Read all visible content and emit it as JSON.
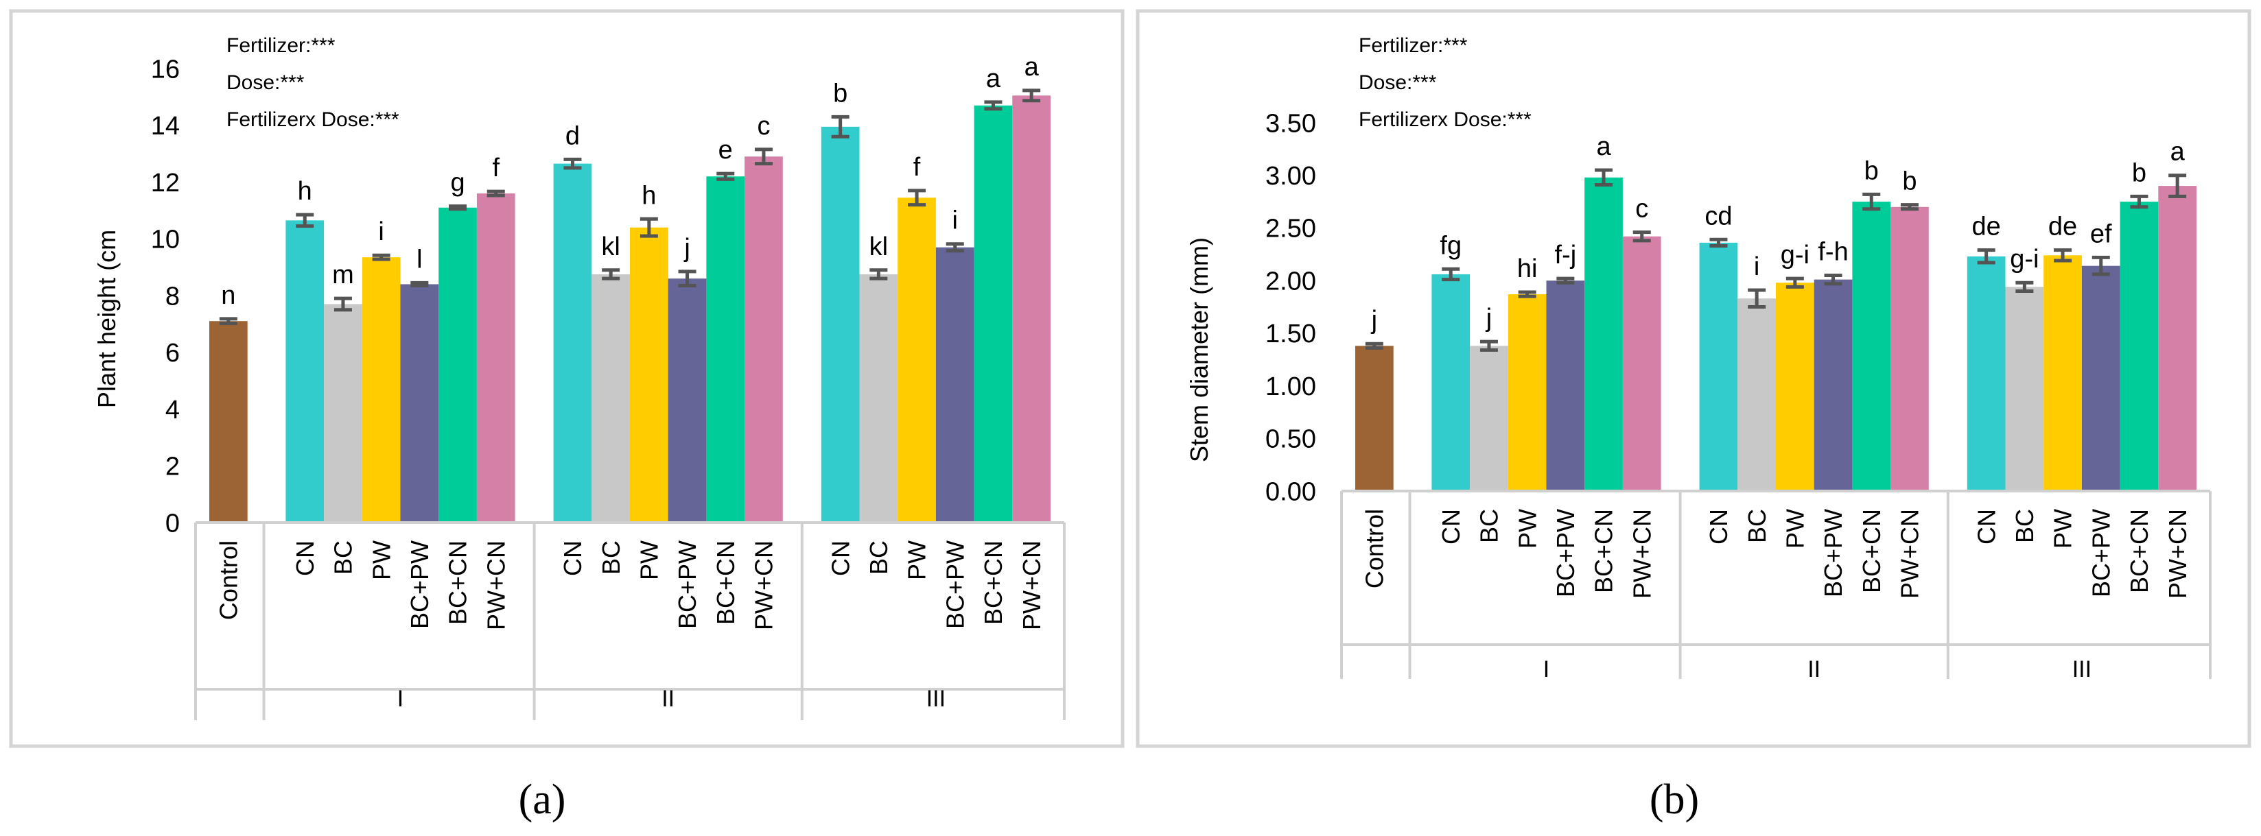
{
  "colors": {
    "Control": "#9c6434",
    "CN": "#33cccc",
    "BC": "#c8c8c8",
    "PW": "#ffcc00",
    "BC+PW": "#656597",
    "BC+CN": "#00cc99",
    "PW+CN": "#d581a7",
    "errorbar": "#545454",
    "frame": "#d4d4d4",
    "axis": "#d0d0d0"
  },
  "chart_data": [
    {
      "type": "bar",
      "panel_label": "(a)",
      "ylabel": "Plant height (cm",
      "ylim": [
        0,
        16
      ],
      "yticks": [
        0,
        2,
        4,
        6,
        8,
        10,
        12,
        14,
        16
      ],
      "ytick_labels": [
        "0",
        "2",
        "4",
        "6",
        "8",
        "10",
        "12",
        "14",
        "16"
      ],
      "annotations": [
        "Fertilizer:***",
        "Dose:***",
        "Fertilizerx Dose:***"
      ],
      "categories": [
        "Control",
        "CN",
        "BC",
        "PW",
        "BC+PW",
        "BC+CN",
        "PW+CN",
        "CN",
        "BC",
        "PW",
        "BC+PW",
        "BC+CN",
        "PW+CN",
        "CN",
        "BC",
        "PW",
        "BC+PW",
        "BC+CN",
        "PW+CN"
      ],
      "groups": [
        {
          "label": "",
          "bars": [
            {
              "name": "Control",
              "value": 7.1,
              "err": 0.08,
              "letter": "n"
            }
          ]
        },
        {
          "label": "I",
          "bars": [
            {
              "name": "CN",
              "value": 10.65,
              "err": 0.2,
              "letter": "h"
            },
            {
              "name": "BC",
              "value": 7.7,
              "err": 0.2,
              "letter": "m"
            },
            {
              "name": "PW",
              "value": 9.35,
              "err": 0.07,
              "letter": "i"
            },
            {
              "name": "BC+PW",
              "value": 8.4,
              "err": 0.05,
              "letter": "l"
            },
            {
              "name": "BC+CN",
              "value": 11.1,
              "err": 0.05,
              "letter": "g"
            },
            {
              "name": "PW+CN",
              "value": 11.6,
              "err": 0.07,
              "letter": "f"
            }
          ]
        },
        {
          "label": "II",
          "bars": [
            {
              "name": "CN",
              "value": 12.65,
              "err": 0.15,
              "letter": "d"
            },
            {
              "name": "BC",
              "value": 8.75,
              "err": 0.15,
              "letter": "kl"
            },
            {
              "name": "PW",
              "value": 10.4,
              "err": 0.3,
              "letter": "h"
            },
            {
              "name": "BC+PW",
              "value": 8.6,
              "err": 0.25,
              "letter": "j"
            },
            {
              "name": "BC+CN",
              "value": 12.2,
              "err": 0.1,
              "letter": "e"
            },
            {
              "name": "PW+CN",
              "value": 12.9,
              "err": 0.25,
              "letter": "c"
            }
          ]
        },
        {
          "label": "III",
          "bars": [
            {
              "name": "CN",
              "value": 13.95,
              "err": 0.35,
              "letter": "b"
            },
            {
              "name": "BC",
              "value": 8.75,
              "err": 0.15,
              "letter": "kl"
            },
            {
              "name": "PW",
              "value": 11.45,
              "err": 0.25,
              "letter": "f"
            },
            {
              "name": "BC+PW",
              "value": 9.7,
              "err": 0.12,
              "letter": "i"
            },
            {
              "name": "BC+CN",
              "value": 14.7,
              "err": 0.12,
              "letter": "a"
            },
            {
              "name": "PW+CN",
              "value": 15.05,
              "err": 0.18,
              "letter": "a"
            }
          ]
        }
      ]
    },
    {
      "type": "bar",
      "panel_label": "(b)",
      "ylabel": "Stem diameter (mm)",
      "ylim": [
        0,
        3.5
      ],
      "yticks": [
        0,
        0.5,
        1,
        1.5,
        2,
        2.5,
        3,
        3.5
      ],
      "ytick_labels": [
        "0.00",
        "0.50",
        "1.00",
        "1.50",
        "2.00",
        "2.50",
        "3.00",
        "3.50"
      ],
      "annotations": [
        "Fertilizer:***",
        "Dose:***",
        "Fertilizerx Dose:***"
      ],
      "categories": [
        "Control",
        "CN",
        "BC",
        "PW",
        "BC+PW",
        "BC+CN",
        "PW+CN",
        "CN",
        "BC",
        "PW",
        "BC+PW",
        "BC+CN",
        "PW+CN",
        "CN",
        "BC",
        "PW",
        "BC+PW",
        "BC+CN",
        "PW+CN"
      ],
      "groups": [
        {
          "label": "",
          "bars": [
            {
              "name": "Control",
              "value": 1.38,
              "err": 0.02,
              "letter": "j"
            }
          ]
        },
        {
          "label": "I",
          "bars": [
            {
              "name": "CN",
              "value": 2.06,
              "err": 0.05,
              "letter": "fg"
            },
            {
              "name": "BC",
              "value": 1.38,
              "err": 0.04,
              "letter": "j"
            },
            {
              "name": "PW",
              "value": 1.87,
              "err": 0.02,
              "letter": "hi"
            },
            {
              "name": "BC+PW",
              "value": 2.0,
              "err": 0.02,
              "letter": "f-j"
            },
            {
              "name": "BC+CN",
              "value": 2.98,
              "err": 0.07,
              "letter": "a"
            },
            {
              "name": "PW+CN",
              "value": 2.42,
              "err": 0.04,
              "letter": "c"
            }
          ]
        },
        {
          "label": "II",
          "bars": [
            {
              "name": "CN",
              "value": 2.36,
              "err": 0.03,
              "letter": "cd"
            },
            {
              "name": "BC",
              "value": 1.83,
              "err": 0.08,
              "letter": "i"
            },
            {
              "name": "PW",
              "value": 1.98,
              "err": 0.04,
              "letter": "g-i"
            },
            {
              "name": "BC+PW",
              "value": 2.01,
              "err": 0.04,
              "letter": "f-h"
            },
            {
              "name": "BC+CN",
              "value": 2.75,
              "err": 0.07,
              "letter": "b"
            },
            {
              "name": "PW+CN",
              "value": 2.7,
              "err": 0.02,
              "letter": "b"
            }
          ]
        },
        {
          "label": "III",
          "bars": [
            {
              "name": "CN",
              "value": 2.23,
              "err": 0.06,
              "letter": "de"
            },
            {
              "name": "BC",
              "value": 1.94,
              "err": 0.04,
              "letter": "g-i"
            },
            {
              "name": "PW",
              "value": 2.24,
              "err": 0.05,
              "letter": "de"
            },
            {
              "name": "BC+PW",
              "value": 2.14,
              "err": 0.08,
              "letter": "ef"
            },
            {
              "name": "BC+CN",
              "value": 2.75,
              "err": 0.05,
              "letter": "b"
            },
            {
              "name": "PW+CN",
              "value": 2.9,
              "err": 0.1,
              "letter": "a"
            }
          ]
        }
      ]
    }
  ]
}
